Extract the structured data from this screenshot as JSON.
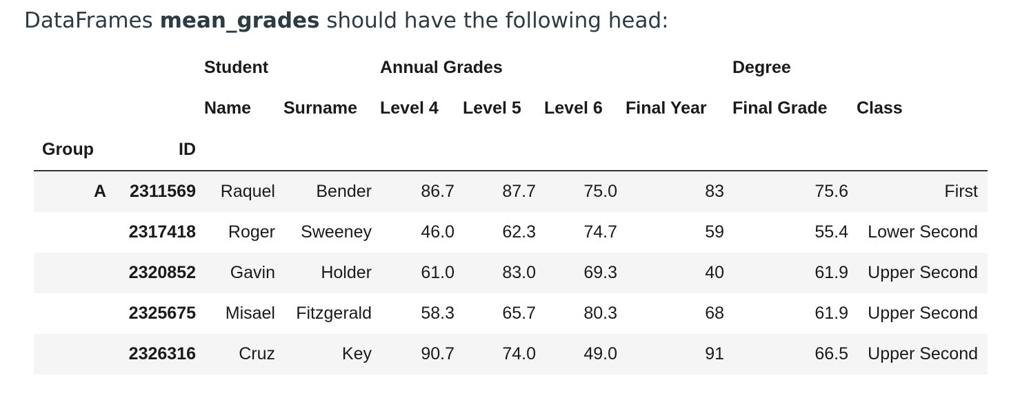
{
  "intro": {
    "prefix": "DataFrames ",
    "name": "mean_grades",
    "suffix": " should have the following head:"
  },
  "table": {
    "top_headers": {
      "student": "Student",
      "annual": "Annual Grades",
      "degree": "Degree"
    },
    "columns": [
      "Name",
      "Surname",
      "Level 4",
      "Level 5",
      "Level 6",
      "Final Year",
      "Final Grade",
      "Class"
    ],
    "index_names": [
      "Group",
      "ID"
    ],
    "rows": [
      {
        "group": "A",
        "id": "2311569",
        "cells": [
          "Raquel",
          "Bender",
          "86.7",
          "87.7",
          "75.0",
          "83",
          "75.6",
          "First"
        ]
      },
      {
        "group": "",
        "id": "2317418",
        "cells": [
          "Roger",
          "Sweeney",
          "46.0",
          "62.3",
          "74.7",
          "59",
          "55.4",
          "Lower Second"
        ]
      },
      {
        "group": "",
        "id": "2320852",
        "cells": [
          "Gavin",
          "Holder",
          "61.0",
          "83.0",
          "69.3",
          "40",
          "61.9",
          "Upper Second"
        ]
      },
      {
        "group": "",
        "id": "2325675",
        "cells": [
          "Misael",
          "Fitzgerald",
          "58.3",
          "65.7",
          "80.3",
          "68",
          "61.9",
          "Upper Second"
        ]
      },
      {
        "group": "",
        "id": "2326316",
        "cells": [
          "Cruz",
          "Key",
          "90.7",
          "74.0",
          "49.0",
          "91",
          "66.5",
          "Upper Second"
        ]
      }
    ]
  }
}
